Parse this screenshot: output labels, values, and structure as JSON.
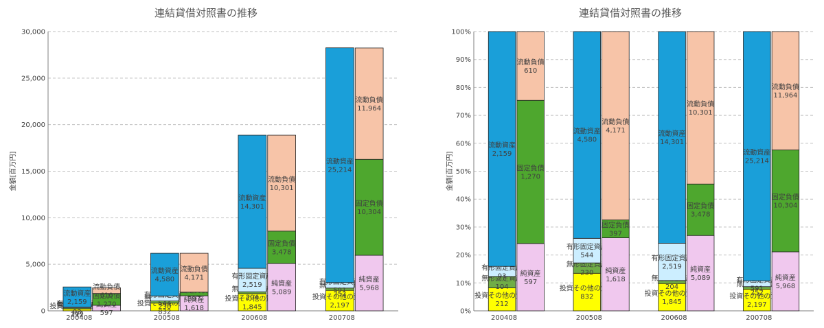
{
  "colors": {
    "investments": "#ffff00",
    "intangible": "#70ad47",
    "tangible": "#cceeff",
    "current_assets": "#1a9fd9",
    "net_assets": "#f0c8ee",
    "fixed_liabilities": "#4ea72e",
    "current_liabilities": "#f7c4a8"
  },
  "chart_data": [
    {
      "type": "bar",
      "stacked": true,
      "title": "連結貸借対照書の推移",
      "ylabel": "金額[百万円]",
      "ylim": [
        0,
        30000
      ],
      "yticks": [
        "0",
        "5,000",
        "10,000",
        "15,000",
        "20,000",
        "25,000",
        "30,000"
      ],
      "categories": [
        "200408",
        "200508",
        "200608",
        "200708"
      ],
      "grid": true,
      "stacks": {
        "assets": [
          {
            "name": "投資その他の資産",
            "values": [
              212,
              832,
              1845,
              2197
            ]
          },
          {
            "name": "無形固定資産",
            "values": [
              104,
              230,
              204,
              252
            ]
          },
          {
            "name": "有形固定資産",
            "values": [
              93,
              544,
              2519,
              591
            ]
          },
          {
            "name": "流動資産",
            "values": [
              2159,
              4580,
              14301,
              25214
            ]
          }
        ],
        "liabilities": [
          {
            "name": "純資産",
            "values": [
              597,
              1618,
              5089,
              5968
            ]
          },
          {
            "name": "固定負債",
            "values": [
              1270,
              397,
              3478,
              10304
            ]
          },
          {
            "name": "流動負債",
            "values": [
              610,
              4171,
              10301,
              11964
            ]
          }
        ]
      },
      "labels": {
        "assets": [
          [
            "212",
            "104",
            "93",
            "2,159"
          ],
          [
            "832",
            "230",
            "544",
            "4,580"
          ],
          [
            "1,845",
            "204",
            "2,519",
            "14,301"
          ],
          [
            "2,197",
            "252",
            "591",
            "25,214"
          ]
        ],
        "liabilities": [
          [
            "597",
            "1,270",
            "610"
          ],
          [
            "1,618",
            "397",
            "4,171"
          ],
          [
            "5,089",
            "3,478",
            "10,301"
          ],
          [
            "5,968",
            "10,304",
            "11,964"
          ]
        ]
      }
    },
    {
      "type": "bar",
      "stacked": true,
      "normalized": true,
      "title": "連結貸借対照書の推移",
      "ylabel": "金額[百万円]",
      "ylim": [
        0,
        100
      ],
      "yticks": [
        "0%",
        "10%",
        "20%",
        "30%",
        "40%",
        "50%",
        "60%",
        "70%",
        "80%",
        "90%",
        "100%"
      ],
      "categories": [
        "200408",
        "200508",
        "200608",
        "200708"
      ],
      "grid": true
    }
  ]
}
